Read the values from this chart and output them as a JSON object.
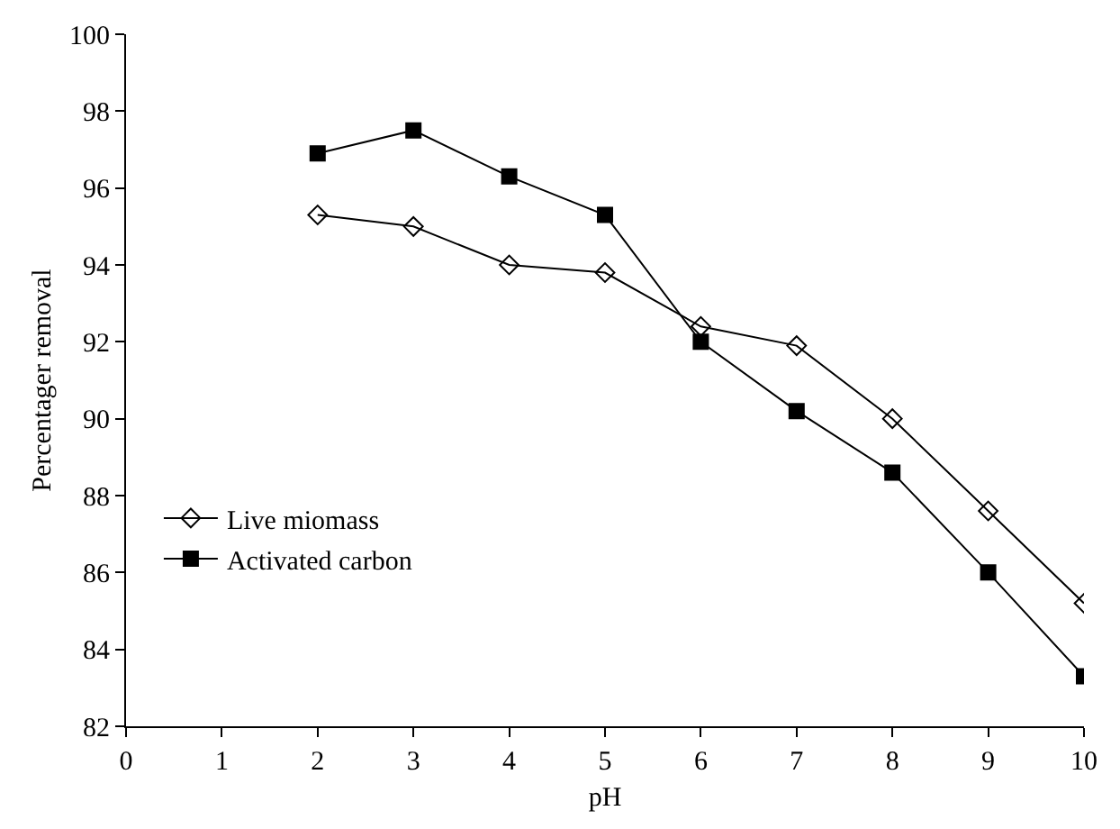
{
  "chart_data": {
    "type": "line",
    "xlabel": "pH",
    "ylabel": "Percentager removal",
    "x": [
      2,
      3,
      4,
      5,
      6,
      7,
      8,
      9,
      10
    ],
    "series": [
      {
        "name": "Live miomass",
        "color": "#000000",
        "marker": "diamond",
        "values": [
          95.3,
          95.0,
          94.0,
          93.8,
          92.4,
          91.9,
          90.0,
          87.6,
          85.2
        ]
      },
      {
        "name": "Activated carbon",
        "color": "#000000",
        "marker": "square",
        "values": [
          96.9,
          97.5,
          96.3,
          95.3,
          92.0,
          90.2,
          88.6,
          86.0,
          83.3
        ]
      }
    ],
    "xlim": [
      0,
      10
    ],
    "xticks": [
      0,
      1,
      2,
      3,
      4,
      5,
      6,
      7,
      8,
      9,
      10
    ],
    "ylim": [
      82,
      100
    ],
    "yticks": [
      82,
      84,
      86,
      88,
      90,
      92,
      94,
      96,
      98,
      100
    ],
    "grid": false,
    "legend": "bottom left",
    "line_style": "solid"
  }
}
